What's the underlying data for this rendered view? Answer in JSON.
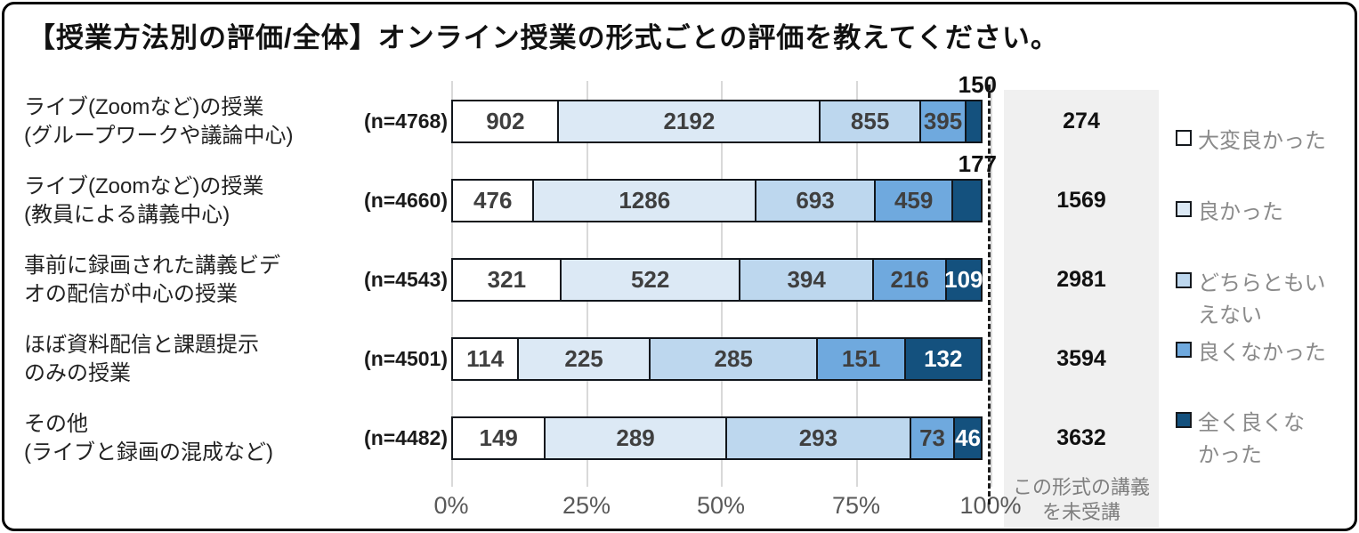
{
  "title": "【授業方法別の評価/全体】オンライン授業の形式ごとの評価を教えてください。",
  "colors": {
    "series": [
      "#FFFFFF",
      "#DCE9F5",
      "#BDD7EE",
      "#6FA9DE",
      "#14517E"
    ],
    "segment_border": "#11161c",
    "gridline": "#D9D9D9",
    "not_attended_bg": "#F0F0F0",
    "legend_text": "#8a8a8a",
    "axis_text": "#595959"
  },
  "chart_data": {
    "type": "bar",
    "stacked": true,
    "orientation": "horizontal",
    "title": "【授業方法別の評価/全体】オンライン授業の形式ごとの評価を教えてください。",
    "x_ticks": [
      "0%",
      "25%",
      "50%",
      "75%",
      "100%"
    ],
    "xlim": [
      0,
      100
    ],
    "grid": true,
    "legend_position": "right",
    "legend": [
      "大変良かった",
      "良かった",
      "どちらともい\nえない",
      "良くなかった",
      "全く良くな\nかった"
    ],
    "not_attended_header": "この形式の講義\nを未受講",
    "rows": [
      {
        "label": "ライブ(Zoomなど)の授業\n(グループワークや議論中心)",
        "n_label": "(n=4768)",
        "values": [
          902,
          2192,
          855,
          395,
          150
        ],
        "not_attended": "274",
        "last_label_above": true
      },
      {
        "label": "ライブ(Zoomなど)の授業\n(教員による講義中心)",
        "n_label": "(n=4660)",
        "values": [
          476,
          1286,
          693,
          459,
          177
        ],
        "not_attended": "1569",
        "last_label_above": true
      },
      {
        "label": "事前に録画された講義ビデ\nオの配信が中心の授業",
        "n_label": "(n=4543)",
        "values": [
          321,
          522,
          394,
          216,
          109
        ],
        "not_attended": "2981",
        "last_label_above": false
      },
      {
        "label": "ほぼ資料配信と課題提示\nのみの授業",
        "n_label": "(n=4501)",
        "values": [
          114,
          225,
          285,
          151,
          132
        ],
        "not_attended": "3594",
        "last_label_above": false
      },
      {
        "label": "その他\n(ライブと録画の混成など)",
        "n_label": "(n=4482)",
        "values": [
          149,
          289,
          293,
          73,
          46
        ],
        "not_attended": "3632",
        "last_label_above": false
      }
    ]
  }
}
